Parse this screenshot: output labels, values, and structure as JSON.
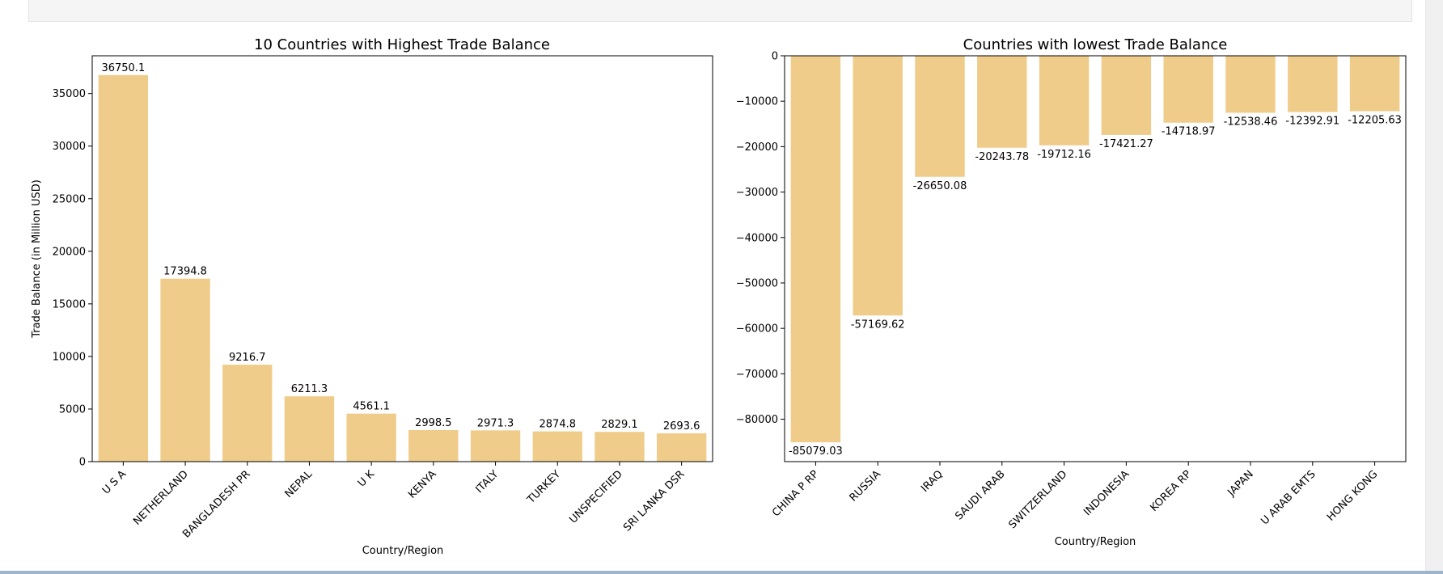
{
  "chart_data": [
    {
      "type": "bar",
      "title": "10 Countries with Highest Trade Balance",
      "xlabel": "Country/Region",
      "ylabel": "Trade Balance (in Million USD)",
      "categories": [
        "U S A",
        "NETHERLAND",
        "BANGLADESH PR",
        "NEPAL",
        "U K",
        "KENYA",
        "ITALY",
        "TURKEY",
        "UNSPECIFIED",
        "SRI LANKA DSR"
      ],
      "values": [
        36750.1,
        17394.8,
        9216.7,
        6211.3,
        4561.1,
        2998.5,
        2971.3,
        2874.8,
        2829.1,
        2693.6
      ],
      "value_labels": [
        "36750.1",
        "17394.8",
        "9216.7",
        "6211.3",
        "4561.1",
        "2998.5",
        "2971.3",
        "2874.8",
        "2829.1",
        "2693.6"
      ],
      "ylim": [
        0,
        38587.6
      ],
      "yticks": [
        0,
        5000,
        10000,
        15000,
        20000,
        25000,
        30000,
        35000
      ],
      "ytick_labels": [
        "0",
        "5000",
        "10000",
        "15000",
        "20000",
        "25000",
        "30000",
        "35000"
      ],
      "bar_color": "#f0cc8b",
      "grid": false
    },
    {
      "type": "bar",
      "title": "Countries with lowest Trade Balance",
      "xlabel": "Country/Region",
      "ylabel": "",
      "categories": [
        "CHINA P RP",
        "RUSSIA",
        "IRAQ",
        "SAUDI ARAB",
        "SWITZERLAND",
        "INDONESIA",
        "KOREA RP",
        "JAPAN",
        "U ARAB EMTS",
        "HONG KONG"
      ],
      "values": [
        -85079.03,
        -57169.62,
        -26650.08,
        -20243.78,
        -19712.16,
        -17421.27,
        -14718.97,
        -12538.46,
        -12392.91,
        -12205.63
      ],
      "value_labels": [
        "-85079.03",
        "-57169.62",
        "-26650.08",
        "-20243.78",
        "-19712.16",
        "-17421.27",
        "-14718.97",
        "-12538.46",
        "-12392.91",
        "-12205.63"
      ],
      "ylim": [
        -89333,
        0
      ],
      "yticks": [
        0,
        -10000,
        -20000,
        -30000,
        -40000,
        -50000,
        -60000,
        -70000,
        -80000
      ],
      "ytick_labels": [
        "0",
        "−10000",
        "−20000",
        "−30000",
        "−40000",
        "−50000",
        "−60000",
        "−70000",
        "−80000"
      ],
      "bar_color": "#f0cc8b",
      "grid": false
    }
  ]
}
